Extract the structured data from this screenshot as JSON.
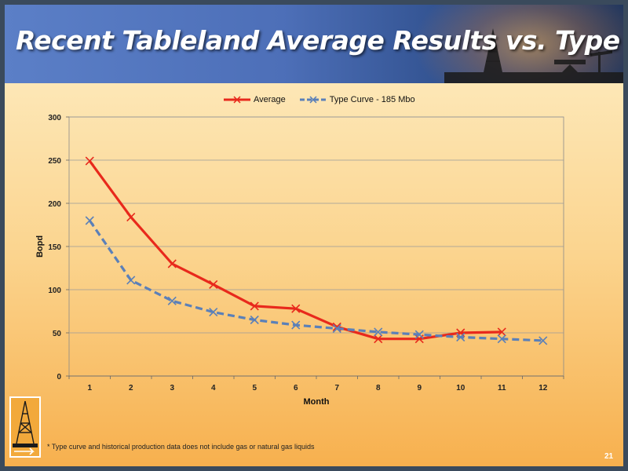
{
  "slide": {
    "title": "Recent Tableland Average Results vs. Type Curve",
    "footnote": "* Type curve and historical production data does not include gas or natural gas liquids",
    "page_number": "21"
  },
  "colors": {
    "average": "#e8291c",
    "type_curve": "#5b80b8"
  },
  "chart_data": {
    "type": "line",
    "title": "",
    "xlabel": "Month",
    "ylabel": "Bopd",
    "ylim": [
      0,
      300
    ],
    "yticks": [
      0,
      50,
      100,
      150,
      200,
      250,
      300
    ],
    "categories": [
      "1",
      "2",
      "3",
      "4",
      "5",
      "6",
      "7",
      "8",
      "9",
      "10",
      "11",
      "12"
    ],
    "grid": true,
    "legend_position": "top",
    "series": [
      {
        "name": "Average",
        "style": "solid",
        "color": "#e8291c",
        "values": [
          249,
          184,
          130,
          106,
          81,
          78,
          57,
          43,
          43,
          50,
          51,
          null
        ]
      },
      {
        "name": "Type Curve - 185 Mbo",
        "style": "dashed",
        "color": "#5b80b8",
        "values": [
          180,
          111,
          87,
          74,
          65,
          59,
          55,
          51,
          48,
          45,
          43,
          41
        ]
      }
    ]
  }
}
